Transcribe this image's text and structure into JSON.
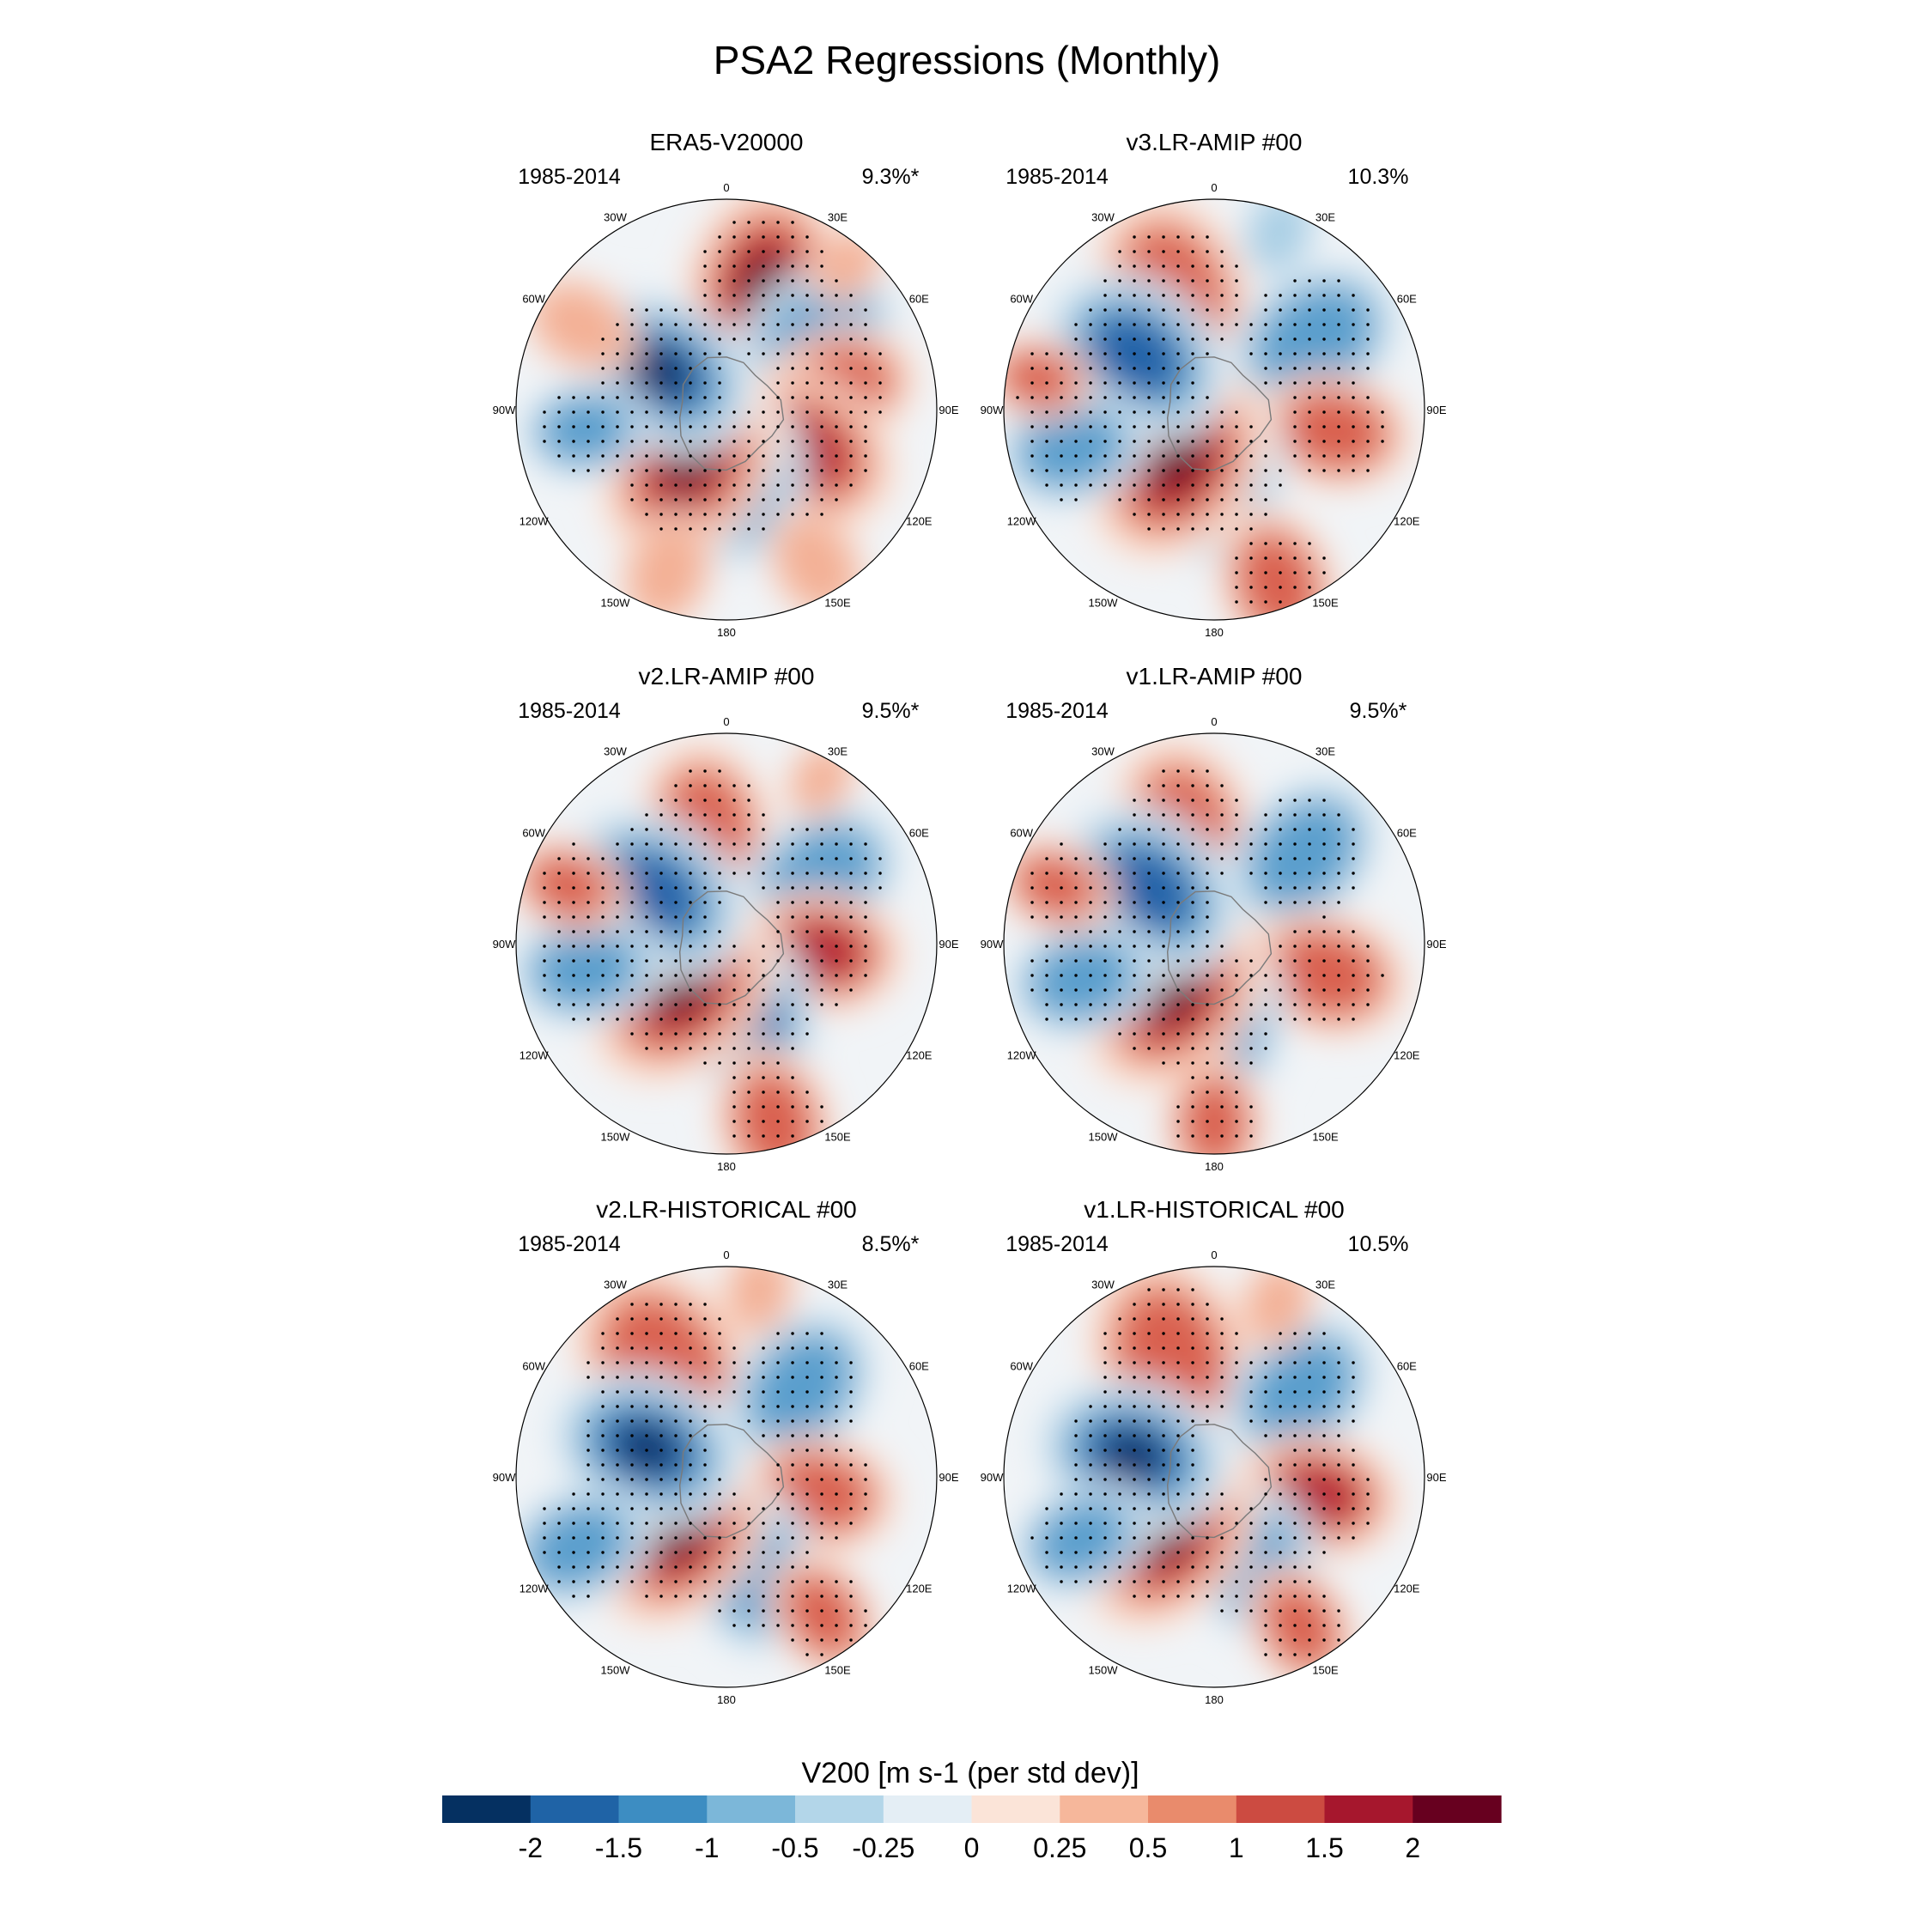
{
  "title": "PSA2 Regressions (Monthly)",
  "panels": [
    {
      "name": "ERA5-V20000",
      "period": "1985-2014",
      "percent": "9.3%*"
    },
    {
      "name": "v3.LR-AMIP  #00",
      "period": "1985-2014",
      "percent": "10.3%"
    },
    {
      "name": "v2.LR-AMIP  #00",
      "period": "1985-2014",
      "percent": "9.5%*"
    },
    {
      "name": "v1.LR-AMIP  #00",
      "period": "1985-2014",
      "percent": "9.5%*"
    },
    {
      "name": "v2.LR-HISTORICAL  #00",
      "period": "1985-2014",
      "percent": "8.5%*"
    },
    {
      "name": "v1.LR-HISTORICAL  #00",
      "period": "1985-2014",
      "percent": "10.5%"
    }
  ],
  "lon_labels": [
    "0",
    "30E",
    "60E",
    "90E",
    "120E",
    "150E",
    "180",
    "150W",
    "120W",
    "90W",
    "60W",
    "30W"
  ],
  "colorbar": {
    "title": "V200 [m s-1 (per std dev)]",
    "tick_labels": [
      "-2",
      "-1.5",
      "-1",
      "-0.5",
      "-0.25",
      "0",
      "0.25",
      "0.5",
      "1",
      "1.5",
      "2"
    ],
    "colors": [
      "#053061",
      "#1f63a6",
      "#3d8dc2",
      "#7cb7d9",
      "#b3d6e9",
      "#e4eef5",
      "#fbe4d8",
      "#f6b79b",
      "#e98b6c",
      "#cc4b41",
      "#a6172d",
      "#67001f"
    ]
  },
  "chart_data": {
    "type": "map",
    "projection": "south-polar-stereographic",
    "field": "V200 regression on PSA2 index",
    "units": "m s-1 (per std dev)",
    "levels": [
      -2,
      -1.5,
      -1,
      -0.5,
      -0.25,
      0,
      0.25,
      0.5,
      1,
      1.5,
      2
    ],
    "stippling": "significant at 95% level",
    "panels": [
      {
        "name": "ERA5-V20000",
        "period": "1985-2014",
        "pct_variance": 9.3,
        "significant": true
      },
      {
        "name": "v3.LR-AMIP #00",
        "period": "1985-2014",
        "pct_variance": 10.3,
        "significant": false
      },
      {
        "name": "v2.LR-AMIP #00",
        "period": "1985-2014",
        "pct_variance": 9.5,
        "significant": true
      },
      {
        "name": "v1.LR-AMIP #00",
        "period": "1985-2014",
        "pct_variance": 9.5,
        "significant": true
      },
      {
        "name": "v2.LR-HISTORICAL #00",
        "period": "1985-2014",
        "pct_variance": 8.5,
        "significant": true
      },
      {
        "name": "v1.LR-HISTORICAL #00",
        "period": "1985-2014",
        "pct_variance": 10.5,
        "significant": false
      }
    ]
  }
}
